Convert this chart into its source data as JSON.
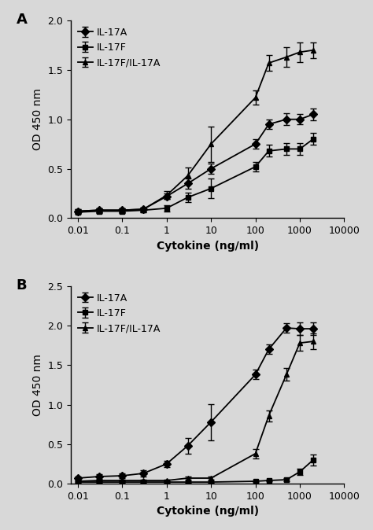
{
  "panel_A": {
    "x": [
      0.01,
      0.03,
      0.1,
      0.3,
      1,
      3,
      10,
      100,
      200,
      500,
      1000,
      2000
    ],
    "IL17A_y": [
      0.07,
      0.08,
      0.08,
      0.09,
      0.22,
      0.35,
      0.5,
      0.75,
      0.95,
      1.0,
      1.0,
      1.05
    ],
    "IL17A_err": [
      0.02,
      0.02,
      0.02,
      0.02,
      0.03,
      0.05,
      0.05,
      0.05,
      0.05,
      0.06,
      0.05,
      0.06
    ],
    "IL17F_y": [
      0.06,
      0.07,
      0.07,
      0.08,
      0.1,
      0.21,
      0.3,
      0.52,
      0.68,
      0.7,
      0.7,
      0.8
    ],
    "IL17F_err": [
      0.02,
      0.02,
      0.02,
      0.02,
      0.03,
      0.05,
      0.1,
      0.05,
      0.06,
      0.06,
      0.06,
      0.06
    ],
    "IL17FA_y": [
      0.07,
      0.08,
      0.08,
      0.09,
      0.23,
      0.43,
      0.75,
      1.22,
      1.57,
      1.63,
      1.68,
      1.7
    ],
    "IL17FA_err": [
      0.02,
      0.02,
      0.02,
      0.02,
      0.04,
      0.08,
      0.18,
      0.07,
      0.08,
      0.1,
      0.1,
      0.08
    ],
    "ylabel": "OD 450 nm",
    "xlabel": "Cytokine (ng/ml)",
    "ylim": [
      0,
      2.0
    ],
    "yticks": [
      0,
      0.5,
      1.0,
      1.5,
      2.0
    ],
    "label": "A"
  },
  "panel_B": {
    "x": [
      0.01,
      0.03,
      0.1,
      0.3,
      1,
      3,
      10,
      100,
      200,
      500,
      1000,
      2000
    ],
    "IL17A_y": [
      0.07,
      0.09,
      0.1,
      0.13,
      0.25,
      0.48,
      0.78,
      1.38,
      1.7,
      1.97,
      1.96,
      1.96
    ],
    "IL17A_err": [
      0.02,
      0.03,
      0.03,
      0.04,
      0.04,
      0.1,
      0.23,
      0.06,
      0.06,
      0.06,
      0.08,
      0.08
    ],
    "IL17F_y": [
      0.02,
      0.02,
      0.02,
      0.02,
      0.02,
      0.02,
      0.02,
      0.03,
      0.04,
      0.05,
      0.15,
      0.3
    ],
    "IL17F_err": [
      0.01,
      0.01,
      0.01,
      0.01,
      0.01,
      0.01,
      0.01,
      0.01,
      0.01,
      0.02,
      0.04,
      0.07
    ],
    "IL17FA_y": [
      0.03,
      0.04,
      0.04,
      0.04,
      0.04,
      0.07,
      0.07,
      0.38,
      0.86,
      1.38,
      1.78,
      1.8
    ],
    "IL17FA_err": [
      0.01,
      0.01,
      0.01,
      0.01,
      0.01,
      0.02,
      0.02,
      0.06,
      0.07,
      0.08,
      0.1,
      0.1
    ],
    "ylabel": "OD 450 nm",
    "xlabel": "Cytokine (ng/ml)",
    "ylim": [
      0,
      2.5
    ],
    "yticks": [
      0,
      0.5,
      1.0,
      1.5,
      2.0,
      2.5
    ],
    "label": "B"
  },
  "legend_labels": [
    "IL-17A",
    "IL-17F",
    "IL-17F/IL-17A"
  ],
  "marker_IL17A": "D",
  "marker_IL17F": "s",
  "marker_IL17FA": "^",
  "line_color": "#000000",
  "bg_color": "#d8d8d8",
  "plot_bg": "#d8d8d8",
  "fontsize_label": 10,
  "fontsize_tick": 9,
  "fontsize_legend": 9,
  "fontsize_panel": 13,
  "xlim": [
    0.007,
    10000
  ],
  "xticks": [
    0.01,
    0.1,
    1,
    10,
    100,
    1000,
    10000
  ],
  "xticklabels": [
    "0.01",
    "0.1",
    "1",
    "10",
    "100",
    "1000",
    "10000"
  ]
}
